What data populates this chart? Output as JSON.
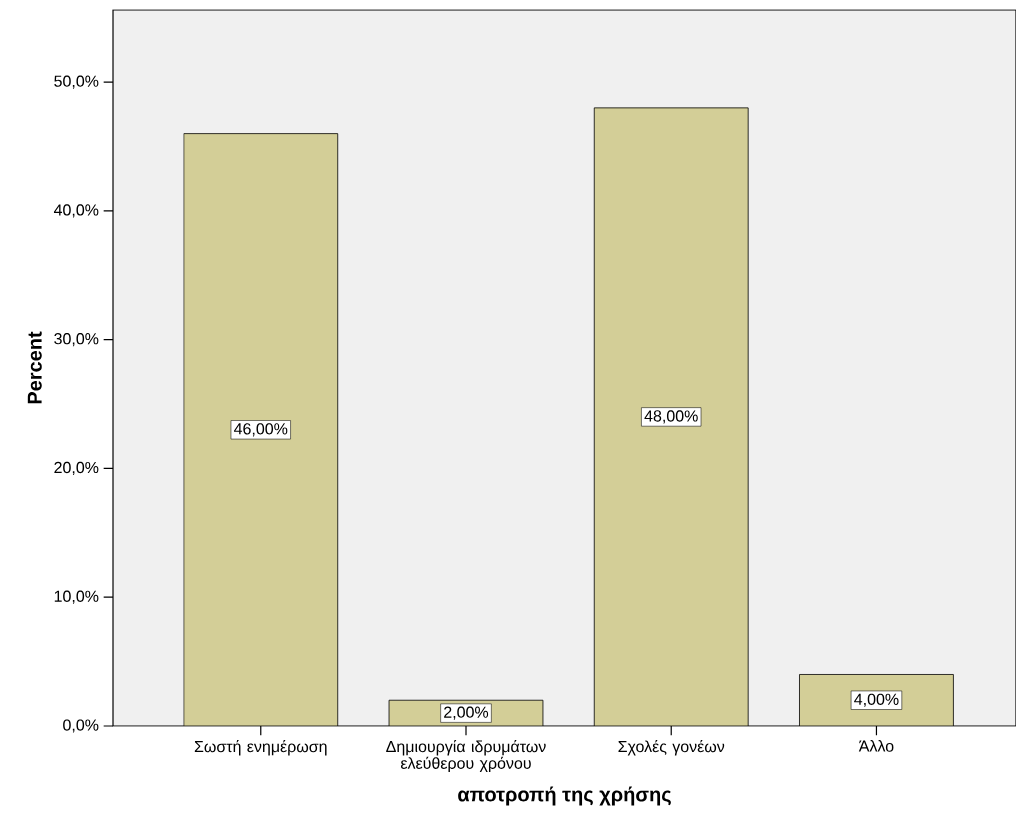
{
  "chart_data": {
    "type": "bar",
    "xlabel": "αποτροπή της χρήσης",
    "ylabel": "Percent",
    "categories": [
      "Σωστή ενημέρωση",
      "Δημιουργία ιδρυμάτων ελεύθερου χρόνου",
      "Σχολές γονέων",
      "Άλλο"
    ],
    "values": [
      46,
      2,
      48,
      4
    ],
    "value_labels": [
      "46,00%",
      "2,00%",
      "48,00%",
      "4,00%"
    ],
    "color": "#d3ce97",
    "ylim": [
      0,
      55.6
    ],
    "yticks": [
      {
        "value": 0,
        "label": "0,0%"
      },
      {
        "value": 10,
        "label": "10,0%"
      },
      {
        "value": 20,
        "label": "20,0%"
      },
      {
        "value": 30,
        "label": "30,0%"
      },
      {
        "value": 40,
        "label": "40,0%"
      },
      {
        "value": 50,
        "label": "50,0%"
      }
    ]
  }
}
